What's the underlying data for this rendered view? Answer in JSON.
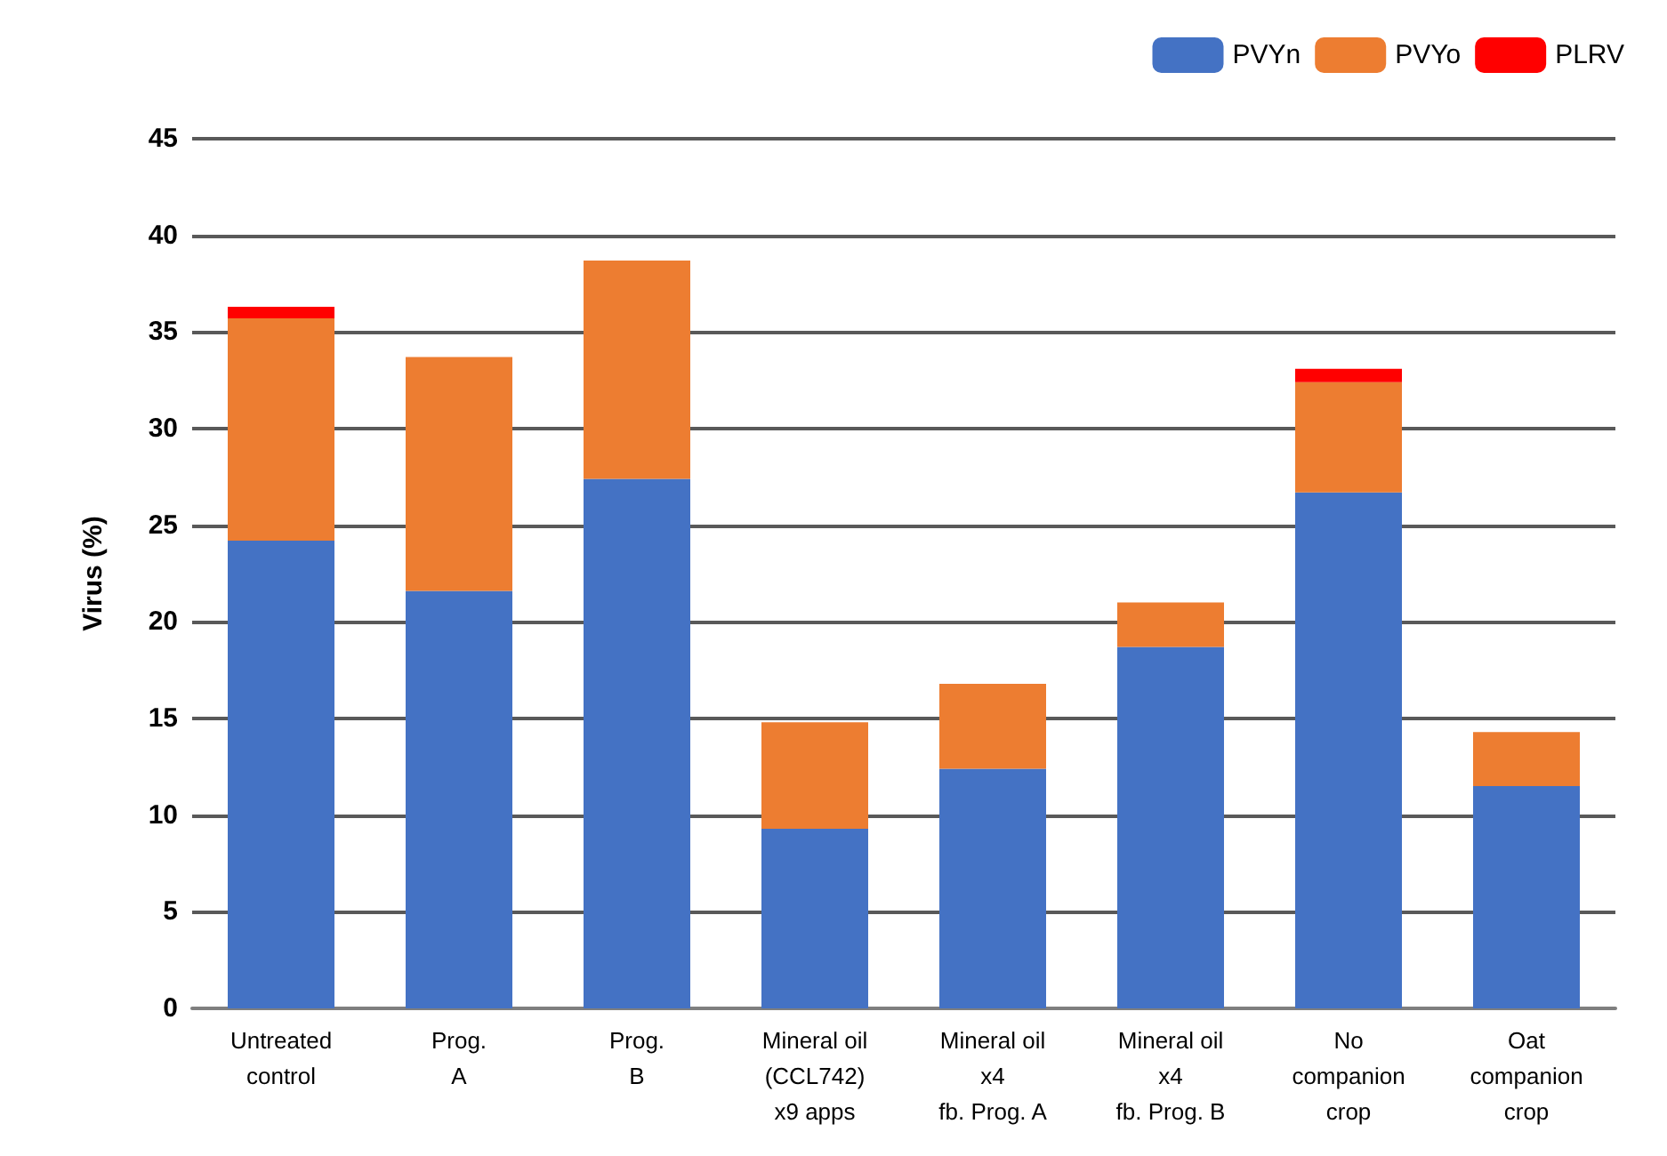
{
  "chart_data": {
    "type": "bar",
    "stacked": true,
    "ylabel": "Virus (%)",
    "categories": [
      "Untreated\ncontrol",
      "Prog.\nA",
      "Prog.\nB",
      "Mineral oil\n(CCL742)\nx9 apps",
      "Mineral oil\nx4\nfb. Prog. A",
      "Mineral oil\nx4\nfb. Prog. B",
      "No\ncompanion\ncrop",
      "Oat\ncompanion\ncrop"
    ],
    "series": [
      {
        "name": "PVYn",
        "color": "#4472c4",
        "values": [
          24.2,
          21.6,
          27.4,
          9.3,
          12.4,
          18.7,
          26.7,
          11.5
        ]
      },
      {
        "name": "PVYo",
        "color": "#ed7d31",
        "values": [
          11.5,
          12.1,
          11.3,
          5.5,
          4.4,
          2.3,
          5.7,
          2.8
        ]
      },
      {
        "name": "PLRV",
        "color": "#ff0000",
        "values": [
          0.6,
          null,
          null,
          null,
          null,
          null,
          0.7,
          null
        ]
      }
    ],
    "ylim": [
      0,
      45
    ],
    "yticks": [
      0,
      5,
      10,
      15,
      20,
      25,
      30,
      35,
      40,
      45
    ],
    "grid": "y",
    "legend": "top right"
  }
}
